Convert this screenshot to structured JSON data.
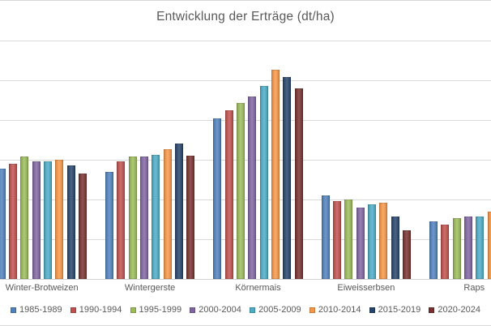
{
  "chart": {
    "title": "Entwicklung der Erträge (dt/ha)"
  },
  "chart_data": {
    "type": "bar",
    "title": "Entwicklung der Erträge (dt/ha)",
    "xlabel": "",
    "ylabel": "",
    "ylim": [
      0,
      120
    ],
    "grid": true,
    "gridline_step": 20,
    "legend_position": "bottom",
    "axis_tick_labels_visible": false,
    "categories": [
      "Winter-Brotweizen",
      "Wintergerste",
      "Körnermais",
      "Eiweisserbsen",
      "Raps"
    ],
    "series": [
      {
        "name": "1985-1989",
        "color": "#4F81BD",
        "values": [
          55.5,
          54,
          81,
          42,
          29
        ]
      },
      {
        "name": "1990-1994",
        "color": "#C0504D",
        "values": [
          58,
          59,
          85,
          39,
          27.5
        ]
      },
      {
        "name": "1995-1999",
        "color": "#9BBB59",
        "values": [
          61.5,
          61.5,
          88.5,
          40,
          30.5
        ]
      },
      {
        "name": "2000-2004",
        "color": "#8064A2",
        "values": [
          59,
          61.5,
          92,
          36,
          31.5
        ]
      },
      {
        "name": "2005-2009",
        "color": "#4BACC6",
        "values": [
          59,
          62.5,
          97,
          37.5,
          31.5
        ]
      },
      {
        "name": "2010-2014",
        "color": "#F79646",
        "values": [
          60,
          65.5,
          105.5,
          38.5,
          34
        ]
      },
      {
        "name": "2015-2019",
        "color": "#25436B",
        "values": [
          57,
          68,
          101.5,
          31.5,
          null
        ]
      },
      {
        "name": "2020-2024",
        "color": "#77302D",
        "values": [
          53,
          62,
          96,
          24.5,
          null
        ]
      }
    ]
  }
}
